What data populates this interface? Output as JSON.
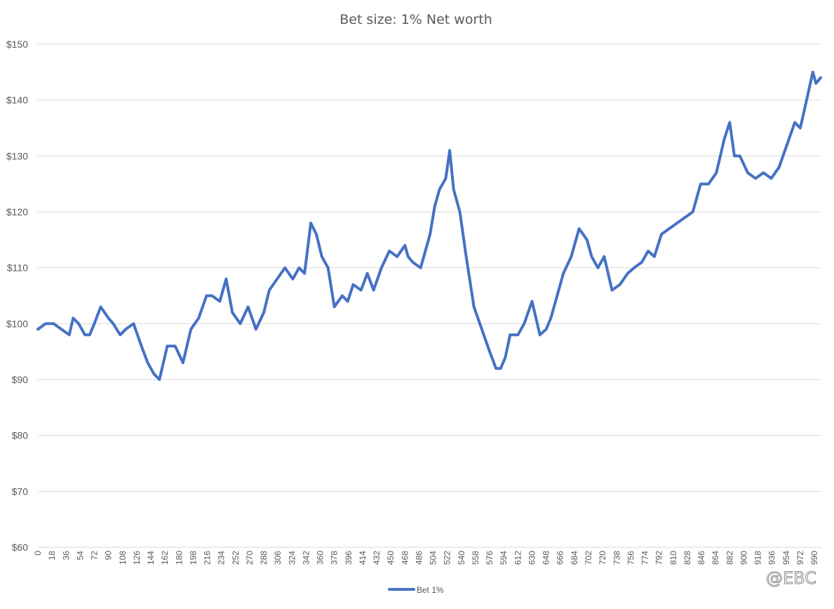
{
  "watermark": "@EBC",
  "chart_data": {
    "type": "line",
    "title": "Bet size: 1% Net worth",
    "xlabel": "",
    "ylabel": "",
    "ylim": [
      60,
      150
    ],
    "xlim": [
      0,
      998
    ],
    "y_ticks": [
      60,
      70,
      80,
      90,
      100,
      110,
      120,
      130,
      140,
      150
    ],
    "y_tick_labels": [
      "$60",
      "$70",
      "$80",
      "$90",
      "$100",
      "$110",
      "$120",
      "$130",
      "$140",
      "$150"
    ],
    "x_tick_labels": [
      "0",
      "18",
      "36",
      "54",
      "72",
      "90",
      "108",
      "126",
      "144",
      "162",
      "180",
      "198",
      "216",
      "234",
      "252",
      "270",
      "288",
      "306",
      "324",
      "342",
      "360",
      "378",
      "396",
      "414",
      "432",
      "450",
      "468",
      "486",
      "504",
      "522",
      "540",
      "558",
      "576",
      "594",
      "612",
      "630",
      "648",
      "666",
      "684",
      "702",
      "720",
      "738",
      "756",
      "774",
      "792",
      "810",
      "828",
      "846",
      "864",
      "882",
      "900",
      "918",
      "936",
      "954",
      "972",
      "990"
    ],
    "grid": true,
    "legend_position": "bottom",
    "series": [
      {
        "name": "Bet 1%",
        "color": "#4472C4",
        "x": [
          0,
          10,
          20,
          30,
          40,
          45,
          52,
          60,
          66,
          72,
          80,
          90,
          96,
          105,
          112,
          122,
          132,
          140,
          148,
          155,
          165,
          175,
          185,
          195,
          205,
          215,
          222,
          232,
          240,
          248,
          258,
          268,
          278,
          288,
          295,
          305,
          315,
          325,
          333,
          340,
          348,
          355,
          362,
          370,
          378,
          388,
          395,
          402,
          412,
          420,
          428,
          438,
          448,
          458,
          468,
          472,
          478,
          488,
          494,
          500,
          506,
          512,
          520,
          525,
          530,
          538,
          546,
          556,
          566,
          576,
          584,
          590,
          596,
          602,
          612,
          620,
          630,
          640,
          648,
          654,
          662,
          670,
          680,
          690,
          700,
          706,
          714,
          722,
          732,
          742,
          752,
          760,
          770,
          778,
          786,
          795,
          805,
          815,
          825,
          835,
          845,
          855,
          865,
          875,
          882,
          888,
          895,
          905,
          915,
          925,
          935,
          945,
          955,
          965,
          972,
          980,
          988,
          992,
          998
        ],
        "values": [
          99,
          100,
          100,
          99,
          98,
          101,
          100,
          98,
          98,
          100,
          103,
          101,
          100,
          98,
          99,
          100,
          96,
          93,
          91,
          90,
          96,
          96,
          93,
          99,
          101,
          105,
          105,
          104,
          108,
          102,
          100,
          103,
          99,
          102,
          106,
          108,
          110,
          108,
          110,
          109,
          118,
          116,
          112,
          110,
          103,
          105,
          104,
          107,
          106,
          109,
          106,
          110,
          113,
          112,
          114,
          112,
          111,
          110,
          113,
          116,
          121,
          124,
          126,
          131,
          124,
          120,
          112,
          103,
          99,
          95,
          92,
          92,
          94,
          98,
          98,
          100,
          104,
          98,
          99,
          101,
          105,
          109,
          112,
          117,
          115,
          112,
          110,
          112,
          106,
          107,
          109,
          110,
          111,
          113,
          112,
          116,
          117,
          118,
          119,
          120,
          125,
          125,
          127,
          133,
          136,
          130,
          130,
          127,
          126,
          127,
          126,
          128,
          132,
          136,
          135,
          140,
          145,
          143,
          144
        ]
      }
    ]
  }
}
